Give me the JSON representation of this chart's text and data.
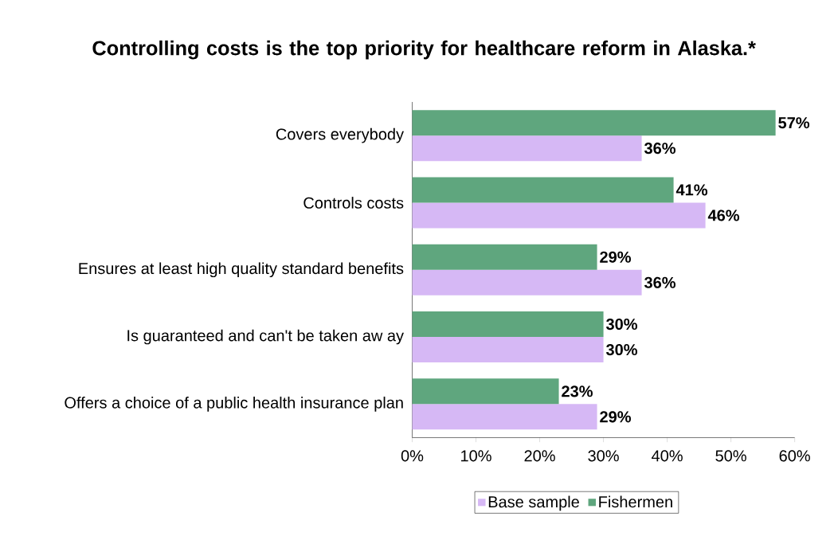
{
  "chart_data": {
    "type": "bar",
    "orientation": "horizontal",
    "title": "Controlling costs is the top priority for healthcare reform in Alaska.*",
    "categories": [
      "Covers everybody",
      "Controls costs",
      "Ensures at least high quality standard benefits",
      "Is guaranteed and can't be taken aw ay",
      "Offers a choice of a public health insurance plan"
    ],
    "series": [
      {
        "name": "Base sample",
        "color": "#d6b8f5",
        "values": [
          36,
          46,
          36,
          30,
          29
        ],
        "value_labels": [
          "36%",
          "46%",
          "36%",
          "30%",
          "29%"
        ]
      },
      {
        "name": "Fishermen",
        "color": "#5fa67e",
        "values": [
          57,
          41,
          29,
          30,
          23
        ],
        "value_labels": [
          "57%",
          "41%",
          "29%",
          "30%",
          "23%"
        ]
      }
    ],
    "xlim": [
      0,
      60
    ],
    "xticks": [
      {
        "value": 0,
        "label": "0%"
      },
      {
        "value": 10,
        "label": "10%"
      },
      {
        "value": 20,
        "label": "20%"
      },
      {
        "value": 30,
        "label": "30%"
      },
      {
        "value": 40,
        "label": "40%"
      },
      {
        "value": 50,
        "label": "50%"
      },
      {
        "value": 60,
        "label": "60%"
      }
    ],
    "legend": "bottom"
  }
}
